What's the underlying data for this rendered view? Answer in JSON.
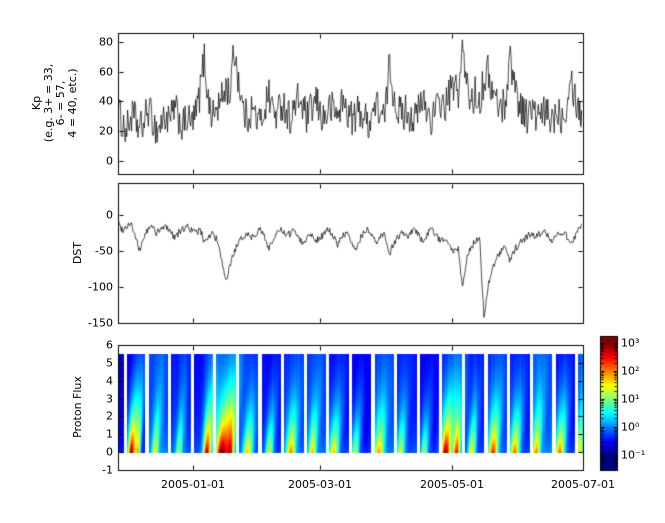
{
  "x_axis": {
    "domain_days": [
      0,
      216
    ],
    "ticks": [
      {
        "label": "2005-01-01",
        "day": 35
      },
      {
        "label": "2005-03-01",
        "day": 94
      },
      {
        "label": "2005-05-01",
        "day": 155
      },
      {
        "label": "2005-07-01",
        "day": 216
      }
    ]
  },
  "chart_data": [
    {
      "type": "line",
      "name": "kp_index",
      "ylabel": "Kp\n(e.g. 3+ = 33,\n6- = 57,\n4 = 40, etc.)",
      "yticks": [
        0,
        20,
        40,
        60,
        80
      ],
      "ylim": [
        -9,
        86
      ],
      "line_color": "#000000",
      "sample_step_days": 2,
      "noise_amplitude": 12,
      "clip": [
        1,
        84
      ],
      "values": [
        35,
        25,
        20,
        30,
        28,
        20,
        25,
        35,
        28,
        20,
        25,
        30,
        25,
        35,
        30,
        22,
        28,
        25,
        30,
        45,
        70,
        40,
        30,
        35,
        40,
        50,
        45,
        75,
        55,
        35,
        28,
        35,
        30,
        25,
        35,
        45,
        35,
        30,
        40,
        35,
        28,
        35,
        42,
        35,
        28,
        35,
        40,
        32,
        28,
        35,
        35,
        30,
        40,
        35,
        30,
        28,
        35,
        30,
        25,
        32,
        38,
        32,
        28,
        65,
        45,
        35,
        30,
        35,
        30,
        28,
        35,
        40,
        32,
        28,
        35,
        40,
        35,
        45,
        50,
        45,
        75,
        50,
        40,
        45,
        40,
        55,
        60,
        45,
        40,
        35,
        40,
        70,
        55,
        40,
        35,
        30,
        35,
        30,
        28,
        32,
        30,
        28,
        35,
        30,
        35,
        60,
        45,
        35,
        30
      ]
    },
    {
      "type": "line",
      "name": "dst_index",
      "ylabel": "DST",
      "yticks": [
        0,
        -50,
        -100,
        -150
      ],
      "ylim": [
        -150,
        45
      ],
      "line_color": "#000000",
      "sample_step_days": 2,
      "noise_amplitude": 5,
      "clip": [
        -152,
        38
      ],
      "values": [
        -10,
        -20,
        -15,
        -10,
        -30,
        -50,
        -30,
        -20,
        -15,
        -25,
        -20,
        -15,
        -20,
        -30,
        -25,
        -20,
        -15,
        -20,
        -25,
        -20,
        -35,
        -30,
        -25,
        -35,
        -60,
        -95,
        -70,
        -50,
        -40,
        -30,
        -25,
        -30,
        -25,
        -20,
        -30,
        -45,
        -35,
        -25,
        -20,
        -30,
        -25,
        -20,
        -30,
        -40,
        -30,
        -25,
        -35,
        -30,
        -25,
        -20,
        -30,
        -40,
        -30,
        -25,
        -35,
        -50,
        -35,
        -25,
        -20,
        -30,
        -40,
        -30,
        -25,
        -55,
        -40,
        -30,
        -25,
        -30,
        -25,
        -20,
        -30,
        -35,
        -25,
        -20,
        -30,
        -35,
        -30,
        -40,
        -50,
        -45,
        -100,
        -60,
        -45,
        -35,
        -30,
        -145,
        -95,
        -75,
        -60,
        -50,
        -45,
        -65,
        -50,
        -40,
        -35,
        -30,
        -25,
        -30,
        -25,
        -20,
        -30,
        -35,
        -25,
        -30,
        -25,
        -40,
        -30,
        -20,
        -15
      ]
    },
    {
      "type": "heatmap",
      "name": "proton_flux",
      "ylabel": "Proton Flux",
      "yticks": [
        -1,
        0,
        1,
        2,
        3,
        4,
        5,
        6
      ],
      "ylim": [
        -1,
        6
      ],
      "data_y_range": [
        0,
        5.5
      ],
      "colormap": "jet",
      "background_log_flux": -0.65,
      "gaps_days": [
        [
          2.5,
          4
        ],
        [
          12.5,
          14
        ],
        [
          23,
          24.5
        ],
        [
          33.5,
          35
        ],
        [
          44,
          45.5
        ],
        [
          54.5,
          56
        ],
        [
          65,
          66.5
        ],
        [
          75.5,
          77
        ],
        [
          86,
          87.5
        ],
        [
          96.5,
          98
        ],
        [
          107,
          108.5
        ],
        [
          117.5,
          119
        ],
        [
          128,
          129.5
        ],
        [
          138.5,
          140
        ],
        [
          149,
          150.5
        ],
        [
          159.5,
          161
        ],
        [
          170,
          171.5
        ],
        [
          180.5,
          182
        ],
        [
          191,
          192.5
        ],
        [
          201.5,
          203
        ],
        [
          212,
          213.5
        ]
      ],
      "events": [
        {
          "day": 6,
          "width": 1.2,
          "intensity": 3.4
        },
        {
          "day": 9,
          "width": 0.8,
          "intensity": 2.2
        },
        {
          "day": 17,
          "width": 1.0,
          "intensity": 1.6
        },
        {
          "day": 28,
          "width": 1.0,
          "intensity": 1.4
        },
        {
          "day": 41,
          "width": 1.2,
          "intensity": 3.0
        },
        {
          "day": 48,
          "width": 2.0,
          "intensity": 3.5
        },
        {
          "day": 52,
          "width": 1.2,
          "intensity": 2.6
        },
        {
          "day": 60,
          "width": 1.5,
          "intensity": 2.0
        },
        {
          "day": 70,
          "width": 1.2,
          "intensity": 1.8
        },
        {
          "day": 80,
          "width": 1.5,
          "intensity": 2.2
        },
        {
          "day": 90,
          "width": 1.2,
          "intensity": 1.9
        },
        {
          "day": 100,
          "width": 1.5,
          "intensity": 2.1
        },
        {
          "day": 110,
          "width": 1.2,
          "intensity": 1.7
        },
        {
          "day": 121,
          "width": 1.5,
          "intensity": 2.0
        },
        {
          "day": 131,
          "width": 1.2,
          "intensity": 1.6
        },
        {
          "day": 142,
          "width": 1.2,
          "intensity": 1.5
        },
        {
          "day": 152,
          "width": 1.5,
          "intensity": 3.3
        },
        {
          "day": 157,
          "width": 1.2,
          "intensity": 2.8
        },
        {
          "day": 164,
          "width": 1.2,
          "intensity": 2.0
        },
        {
          "day": 174,
          "width": 1.5,
          "intensity": 2.6
        },
        {
          "day": 184,
          "width": 1.5,
          "intensity": 2.4
        },
        {
          "day": 194,
          "width": 1.2,
          "intensity": 2.0
        },
        {
          "day": 205,
          "width": 1.5,
          "intensity": 2.4
        },
        {
          "day": 214,
          "width": 1.0,
          "intensity": 1.8
        }
      ],
      "colorbar": {
        "log_range": [
          -1.54,
          3.25
        ],
        "ticks": [
          {
            "label": "10³",
            "log": 3
          },
          {
            "label": "10²",
            "log": 2
          },
          {
            "label": "10¹",
            "log": 1
          },
          {
            "label": "10⁰",
            "log": 0
          },
          {
            "label": "10⁻¹",
            "log": -1
          }
        ]
      }
    }
  ],
  "colors": {
    "background": "#ffffff",
    "frame": "#000000",
    "text": "#000000"
  }
}
